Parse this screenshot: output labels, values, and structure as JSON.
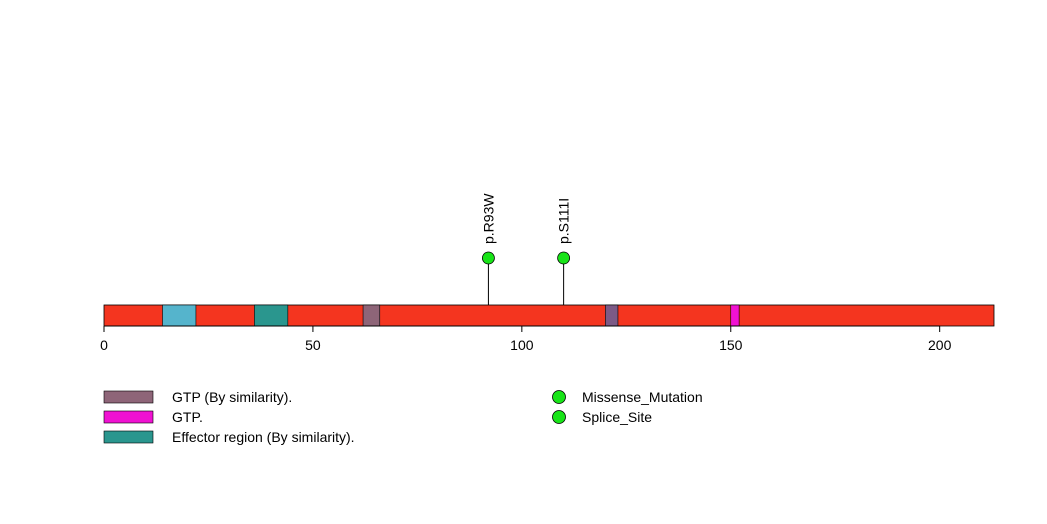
{
  "chart_data": {
    "type": "lollipop",
    "title": "",
    "xlabel": "",
    "ylabel": "",
    "xlim": [
      0,
      213
    ],
    "ticks": [
      0,
      50,
      100,
      150,
      200
    ],
    "protein_length": 213,
    "backbone_color": "#F4351F",
    "domains": [
      {
        "start": 14,
        "end": 22,
        "color": "#55B4CC",
        "label": ""
      },
      {
        "start": 36,
        "end": 44,
        "color": "#2A968E",
        "label": "Effector region (By similarity)."
      },
      {
        "start": 62,
        "end": 66,
        "color": "#8E6578",
        "label": "GTP (By similarity)."
      },
      {
        "start": 120,
        "end": 123,
        "color": "#7C5A86",
        "label": "GTP (By similarity)."
      },
      {
        "start": 150,
        "end": 152,
        "color": "#F012D2",
        "label": "GTP."
      }
    ],
    "mutations": [
      {
        "position": 92,
        "label": "p.R93W",
        "type": "Missense_Mutation",
        "color": "#18E418"
      },
      {
        "position": 110,
        "label": "p.S111I",
        "type": "Splice_Site",
        "color": "#18E418"
      }
    ],
    "domain_legend": [
      {
        "label": "GTP (By similarity).",
        "color": "#8E6578"
      },
      {
        "label": "GTP.",
        "color": "#F012D2"
      },
      {
        "label": "Effector region (By similarity).",
        "color": "#2A968E"
      }
    ],
    "mutation_legend": [
      {
        "label": "Missense_Mutation",
        "color": "#18E418"
      },
      {
        "label": "Splice_Site",
        "color": "#18E418"
      }
    ]
  }
}
